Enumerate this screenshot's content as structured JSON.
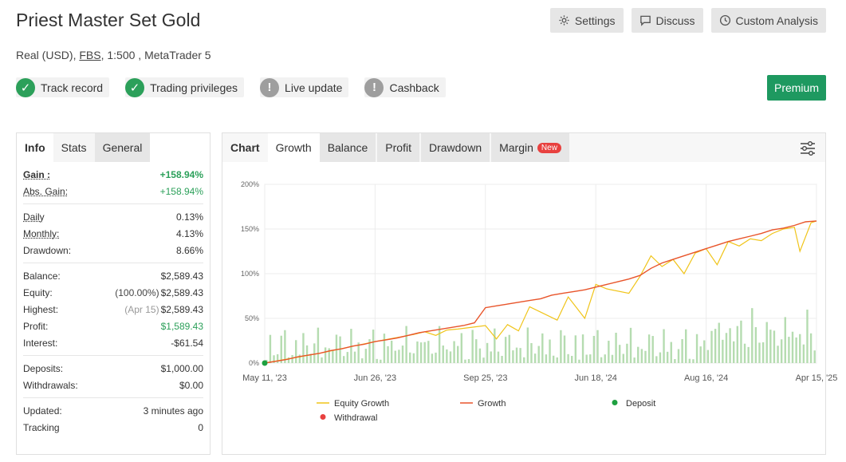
{
  "header": {
    "title": "Priest Master Set Gold",
    "account_type": "Real (USD),",
    "broker": "FBS",
    "leverage_platform": ", 1:500 , MetaTrader 5"
  },
  "top_buttons": {
    "settings": "Settings",
    "discuss": "Discuss",
    "custom_analysis": "Custom Analysis"
  },
  "badges": [
    {
      "label": "Track record",
      "status": "verified"
    },
    {
      "label": "Trading privileges",
      "status": "verified"
    },
    {
      "label": "Live update",
      "status": "warning"
    },
    {
      "label": "Cashback",
      "status": "warning"
    }
  ],
  "premium_label": "Premium",
  "left_tabs": {
    "info": "Info",
    "stats": "Stats",
    "general": "General"
  },
  "stats": {
    "gain": {
      "label": "Gain :",
      "value": "+158.94%"
    },
    "abs_gain": {
      "label": "Abs. Gain:",
      "value": "+158.94%"
    },
    "daily": {
      "label": "Daily",
      "value": "0.13%"
    },
    "monthly": {
      "label": "Monthly:",
      "value": "4.13%"
    },
    "drawdown": {
      "label": "Drawdown:",
      "value": "8.66%"
    },
    "balance": {
      "label": "Balance:",
      "value": "$2,589.43"
    },
    "equity": {
      "label": "Equity:",
      "sub": "(100.00%)",
      "value": "$2,589.43"
    },
    "highest": {
      "label": "Highest:",
      "sub": "(Apr 15)",
      "value": "$2,589.43"
    },
    "profit": {
      "label": "Profit:",
      "value": "$1,589.43"
    },
    "interest": {
      "label": "Interest:",
      "value": "-$61.54"
    },
    "deposits": {
      "label": "Deposits:",
      "value": "$1,000.00"
    },
    "withdrawals": {
      "label": "Withdrawals:",
      "value": "$0.00"
    },
    "updated": {
      "label": "Updated:",
      "value": "3 minutes ago"
    },
    "tracking": {
      "label": "Tracking",
      "value": "0"
    }
  },
  "chart_tabs": {
    "chart": "Chart",
    "growth": "Growth",
    "balance": "Balance",
    "profit": "Profit",
    "drawdown": "Drawdown",
    "margin": "Margin",
    "new_badge": "New"
  },
  "colors": {
    "green": "#2ca05a",
    "growth_line": "#e8542a",
    "equity_line": "#f0c419",
    "bars": "#b5dcb0",
    "deposit": "#1ea040",
    "withdrawal": "#e8413f"
  },
  "chart_data": {
    "type": "line",
    "x_tick_labels": [
      "May 11, '23",
      "Jun 26, '23",
      "Sep 25, '23",
      "Jun 18, '24",
      "Aug 16, '24",
      "Apr 15, '25"
    ],
    "y_tick_labels": [
      "0%",
      "50%",
      "100%",
      "150%",
      "200%"
    ],
    "ylim": [
      0,
      200
    ],
    "grid": true,
    "legend": [
      "Equity Growth",
      "Growth",
      "Deposit",
      "Withdrawal"
    ],
    "legend_position": "bottom",
    "series": [
      {
        "name": "Growth",
        "x": [
          0,
          2,
          4,
          6,
          8,
          10,
          12,
          14,
          16,
          18,
          20,
          22,
          24,
          26,
          28,
          30,
          32,
          34,
          36,
          38,
          40,
          42,
          44,
          46,
          48,
          50,
          52,
          54,
          56,
          58,
          60,
          62,
          64,
          66,
          68,
          70,
          72,
          74,
          76,
          78,
          80,
          82,
          84,
          86,
          88,
          90,
          92,
          94,
          96,
          98,
          100
        ],
        "values": [
          0,
          2,
          4,
          7,
          9,
          11,
          14,
          16,
          19,
          21,
          24,
          26,
          28,
          31,
          34,
          36,
          38,
          40,
          42,
          45,
          62,
          64,
          66,
          68,
          70,
          72,
          76,
          78,
          80,
          82,
          85,
          88,
          91,
          94,
          98,
          106,
          112,
          116,
          120,
          124,
          128,
          132,
          136,
          139,
          142,
          145,
          149,
          151,
          154,
          158,
          159
        ]
      },
      {
        "name": "Equity Growth",
        "x": [
          0,
          10,
          20,
          27,
          29,
          31,
          33,
          35,
          40,
          42,
          44,
          46,
          48,
          53,
          55,
          58,
          60,
          62,
          66,
          68,
          70,
          72,
          74,
          76,
          78,
          80,
          82,
          84,
          86,
          88,
          90,
          92,
          94,
          96,
          97,
          99,
          100
        ],
        "values": [
          0,
          11,
          24,
          32,
          35,
          31,
          37,
          38,
          42,
          27,
          43,
          36,
          63,
          48,
          74,
          50,
          88,
          83,
          78,
          97,
          120,
          108,
          116,
          100,
          123,
          128,
          110,
          136,
          131,
          139,
          137,
          145,
          150,
          152,
          125,
          157,
          159
        ]
      }
    ],
    "deposits": [
      {
        "x": 0,
        "value": 0
      }
    ]
  }
}
